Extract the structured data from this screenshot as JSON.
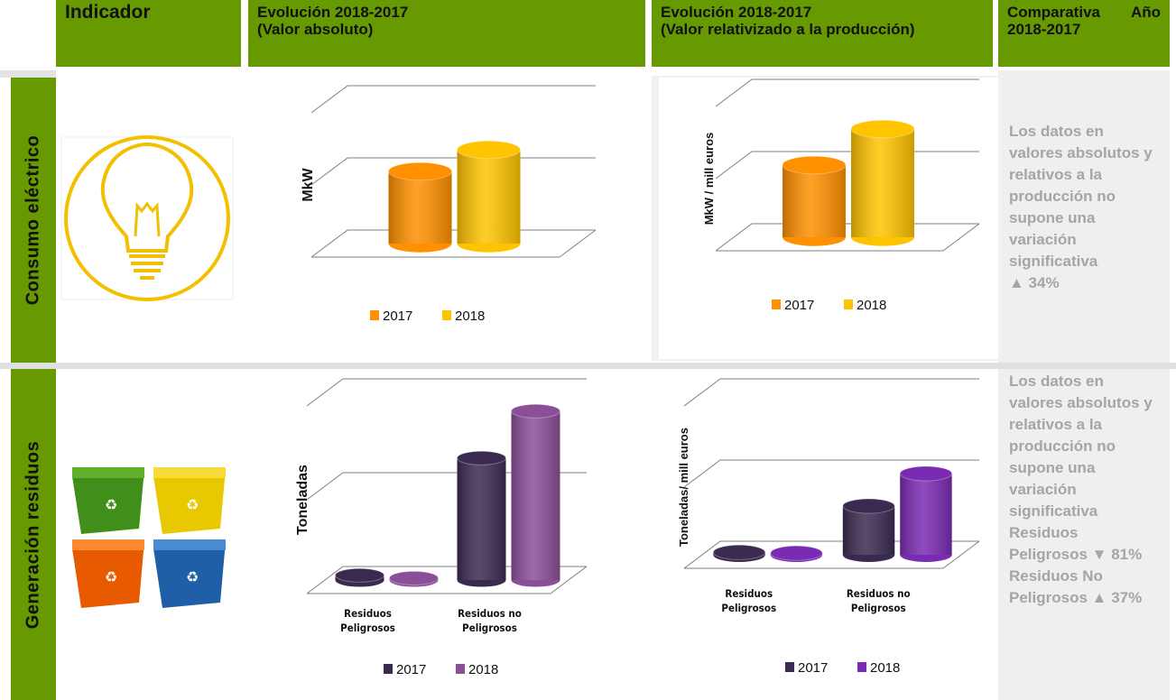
{
  "header": {
    "indicator": "Indicador",
    "absolute": [
      "Evolución 2018-2017",
      "(Valor absoluto)"
    ],
    "relative": [
      "Evolución 2018-2017",
      "(Valor relativizado a la producción)"
    ],
    "comparison": "Comparativa Año 2018-2017"
  },
  "rows": [
    {
      "label": "Consumo eléctrico",
      "charts": [
        {
          "type": "bar3d",
          "y_label": "MkW",
          "categories": [
            null
          ],
          "ylim": [
            0,
            2
          ],
          "gridlines": [
            0,
            1,
            2
          ],
          "series": [
            {
              "name": "2017",
              "color": "#ff9000",
              "values": [
                1.0
              ]
            },
            {
              "name": "2018",
              "color": "#ffc400",
              "values": [
                1.3
              ]
            }
          ]
        },
        {
          "type": "bar3d",
          "y_label": "MkW / mill euros",
          "categories": [
            null
          ],
          "ylim": [
            0,
            2
          ],
          "gridlines": [
            0,
            1,
            2
          ],
          "series": [
            {
              "name": "2017",
              "color": "#ff9000",
              "values": [
                1.0
              ]
            },
            {
              "name": "2018",
              "color": "#ffc400",
              "values": [
                1.5
              ]
            }
          ]
        }
      ],
      "comparison": [
        "Los datos en valores absolutos y relativos a la producción no supone una variación significativa",
        "▲ 34%"
      ]
    },
    {
      "label": "Generación residuos",
      "charts": [
        {
          "type": "bar3d",
          "y_label": "Toneladas",
          "categories": [
            "Residuos Peligrosos",
            "Residuos no Peligrosos"
          ],
          "ylim": [
            0,
            2
          ],
          "gridlines": [
            0,
            1,
            2
          ],
          "series": [
            {
              "name": "2017",
              "color": "#3b2a50",
              "values": [
                0.05,
                1.3
              ]
            },
            {
              "name": "2018",
              "color": "#8b4f98",
              "values": [
                0.02,
                1.8
              ]
            }
          ]
        },
        {
          "type": "bar3d",
          "y_label": "Toneladas/ mill euros",
          "categories": [
            "Residuos Peligrosos",
            "Residuos no Peligrosos"
          ],
          "ylim": [
            0,
            2
          ],
          "gridlines": [
            0,
            1,
            2
          ],
          "series": [
            {
              "name": "2017",
              "color": "#3b2a50",
              "values": [
                0.03,
                0.6
              ]
            },
            {
              "name": "2018",
              "color": "#7a2bb3",
              "values": [
                0.02,
                1.0
              ]
            }
          ]
        }
      ],
      "comparison": [
        "Los datos en valores absolutos y relativos a la producción no supone una variación significativa",
        "Residuos Peligrosos ▼ 81%",
        "Residuos No Peligrosos ▲ 37%"
      ]
    }
  ]
}
